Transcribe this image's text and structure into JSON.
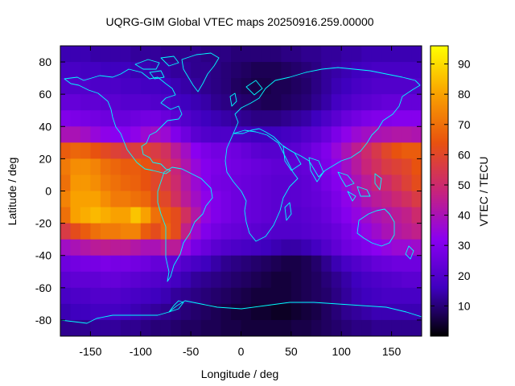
{
  "chart_data": {
    "type": "heatmap",
    "title": "UQRG-GIM Global VTEC maps 20250916.259.00000",
    "xlabel": "Longitude / deg",
    "ylabel": "Latitude / deg",
    "colorbar_label": "VTEC / TECU",
    "xlim": [
      -180,
      180
    ],
    "ylim": [
      -90,
      90
    ],
    "zlim": [
      0,
      96
    ],
    "xticks": [
      -150,
      -100,
      -50,
      0,
      50,
      100,
      150
    ],
    "yticks": [
      -80,
      -60,
      -40,
      -20,
      0,
      20,
      40,
      60,
      80
    ],
    "colorbar_ticks": [
      10,
      20,
      30,
      40,
      50,
      60,
      70,
      80,
      90
    ],
    "colormap": [
      "#000000",
      "#3f00bf",
      "#8a00f0",
      "#c8247a",
      "#e8520f",
      "#f9a100",
      "#ffff00"
    ],
    "coastline_color": "#00ffff",
    "grid": false,
    "lon_centers": [
      -175,
      -165,
      -155,
      -145,
      -135,
      -125,
      -115,
      -105,
      -95,
      -85,
      -75,
      -65,
      -55,
      -45,
      -35,
      -25,
      -15,
      -5,
      5,
      15,
      25,
      35,
      45,
      55,
      65,
      75,
      85,
      95,
      105,
      115,
      125,
      135,
      145,
      155,
      165,
      175
    ],
    "lat_centers": [
      85,
      75,
      65,
      55,
      45,
      35,
      25,
      15,
      5,
      -5,
      -15,
      -25,
      -35,
      -45,
      -55,
      -65,
      -75,
      -85
    ],
    "vtec_rows": [
      [
        15,
        15,
        15,
        14,
        14,
        14,
        14,
        13,
        13,
        13,
        12,
        12,
        12,
        12,
        11,
        11,
        11,
        10,
        10,
        10,
        10,
        10,
        11,
        11,
        12,
        12,
        13,
        13,
        14,
        14,
        15,
        15,
        15,
        15,
        15,
        15
      ],
      [
        18,
        18,
        17,
        17,
        16,
        16,
        16,
        15,
        15,
        14,
        14,
        13,
        13,
        12,
        12,
        11,
        10,
        9,
        8,
        7,
        7,
        7,
        8,
        9,
        10,
        11,
        13,
        14,
        15,
        16,
        17,
        18,
        18,
        18,
        18,
        18
      ],
      [
        20,
        20,
        20,
        19,
        19,
        19,
        18,
        18,
        17,
        17,
        16,
        15,
        14,
        13,
        12,
        11,
        10,
        8,
        7,
        6,
        6,
        7,
        7,
        8,
        9,
        11,
        13,
        15,
        16,
        18,
        19,
        20,
        20,
        20,
        20,
        20
      ],
      [
        24,
        24,
        23,
        23,
        22,
        22,
        21,
        21,
        21,
        20,
        19,
        17,
        16,
        15,
        14,
        12,
        11,
        10,
        9,
        8,
        7,
        7,
        8,
        9,
        10,
        12,
        14,
        17,
        19,
        21,
        22,
        23,
        24,
        24,
        24,
        24
      ],
      [
        30,
        29,
        28,
        27,
        26,
        25,
        25,
        26,
        27,
        27,
        25,
        22,
        20,
        18,
        16,
        15,
        14,
        13,
        12,
        11,
        11,
        11,
        12,
        13,
        14,
        16,
        19,
        22,
        25,
        27,
        29,
        30,
        30,
        31,
        31,
        31
      ],
      [
        40,
        40,
        38,
        35,
        33,
        32,
        31,
        33,
        36,
        38,
        36,
        30,
        26,
        22,
        20,
        19,
        19,
        18,
        17,
        16,
        16,
        16,
        17,
        18,
        20,
        22,
        25,
        29,
        33,
        36,
        38,
        40,
        41,
        42,
        42,
        41
      ],
      [
        66,
        68,
        67,
        64,
        61,
        58,
        56,
        57,
        58,
        56,
        52,
        44,
        38,
        32,
        29,
        27,
        27,
        26,
        24,
        22,
        21,
        21,
        21,
        22,
        24,
        27,
        30,
        35,
        40,
        45,
        50,
        55,
        60,
        64,
        66,
        66
      ],
      [
        72,
        76,
        76,
        74,
        70,
        68,
        66,
        66,
        64,
        60,
        55,
        48,
        41,
        35,
        31,
        29,
        28,
        27,
        26,
        25,
        24,
        23,
        23,
        23,
        24,
        26,
        29,
        33,
        38,
        43,
        48,
        52,
        56,
        58,
        60,
        64
      ],
      [
        70,
        78,
        78,
        76,
        72,
        70,
        68,
        67,
        64,
        60,
        56,
        50,
        42,
        36,
        31,
        28,
        27,
        26,
        25,
        24,
        23,
        22,
        22,
        22,
        23,
        25,
        28,
        31,
        35,
        40,
        44,
        48,
        50,
        54,
        58,
        62
      ],
      [
        74,
        80,
        80,
        80,
        76,
        72,
        72,
        70,
        68,
        62,
        60,
        52,
        44,
        38,
        33,
        30,
        28,
        26,
        25,
        24,
        23,
        22,
        22,
        22,
        23,
        24,
        26,
        29,
        33,
        37,
        41,
        44,
        46,
        49,
        52,
        56
      ],
      [
        70,
        80,
        82,
        84,
        82,
        80,
        80,
        86,
        80,
        70,
        66,
        62,
        52,
        42,
        34,
        30,
        28,
        26,
        25,
        24,
        23,
        22,
        21,
        21,
        22,
        23,
        25,
        28,
        31,
        34,
        37,
        40,
        42,
        44,
        46,
        50
      ],
      [
        56,
        62,
        66,
        70,
        72,
        72,
        74,
        74,
        66,
        62,
        68,
        62,
        46,
        36,
        30,
        27,
        25,
        24,
        23,
        22,
        21,
        20,
        20,
        20,
        21,
        22,
        23,
        25,
        28,
        31,
        34,
        37,
        40,
        42,
        44,
        46
      ],
      [
        38,
        40,
        42,
        44,
        45,
        44,
        44,
        42,
        40,
        40,
        44,
        44,
        34,
        28,
        25,
        22,
        20,
        19,
        18,
        17,
        16,
        15,
        14,
        14,
        15,
        17,
        20,
        23,
        26,
        28,
        30,
        32,
        34,
        36,
        36,
        37
      ],
      [
        26,
        27,
        28,
        28,
        29,
        28,
        28,
        27,
        26,
        24,
        24,
        23,
        20,
        18,
        16,
        14,
        12,
        11,
        10,
        9,
        8,
        7,
        6,
        6,
        7,
        9,
        12,
        15,
        18,
        20,
        22,
        24,
        25,
        26,
        26,
        26
      ],
      [
        22,
        23,
        23,
        23,
        24,
        24,
        23,
        22,
        21,
        20,
        19,
        17,
        15,
        13,
        12,
        11,
        10,
        9,
        8,
        7,
        6,
        5,
        5,
        6,
        7,
        8,
        10,
        12,
        14,
        16,
        18,
        19,
        20,
        21,
        22,
        22
      ],
      [
        18,
        19,
        19,
        20,
        20,
        20,
        19,
        18,
        17,
        16,
        15,
        13,
        12,
        11,
        10,
        9,
        8,
        7,
        6,
        5,
        5,
        5,
        5,
        6,
        7,
        8,
        9,
        11,
        13,
        15,
        16,
        17,
        18,
        18,
        18,
        18
      ],
      [
        15,
        16,
        16,
        17,
        17,
        17,
        16,
        15,
        14,
        13,
        12,
        11,
        10,
        9,
        8,
        7,
        6,
        5,
        5,
        4,
        4,
        3,
        3,
        4,
        5,
        6,
        8,
        10,
        12,
        13,
        14,
        15,
        15,
        15,
        15,
        15
      ],
      [
        12,
        12,
        12,
        13,
        13,
        13,
        12,
        12,
        11,
        10,
        10,
        9,
        8,
        8,
        7,
        7,
        6,
        6,
        5,
        5,
        5,
        5,
        5,
        6,
        6,
        7,
        8,
        9,
        10,
        11,
        11,
        12,
        12,
        12,
        12,
        12
      ]
    ]
  }
}
